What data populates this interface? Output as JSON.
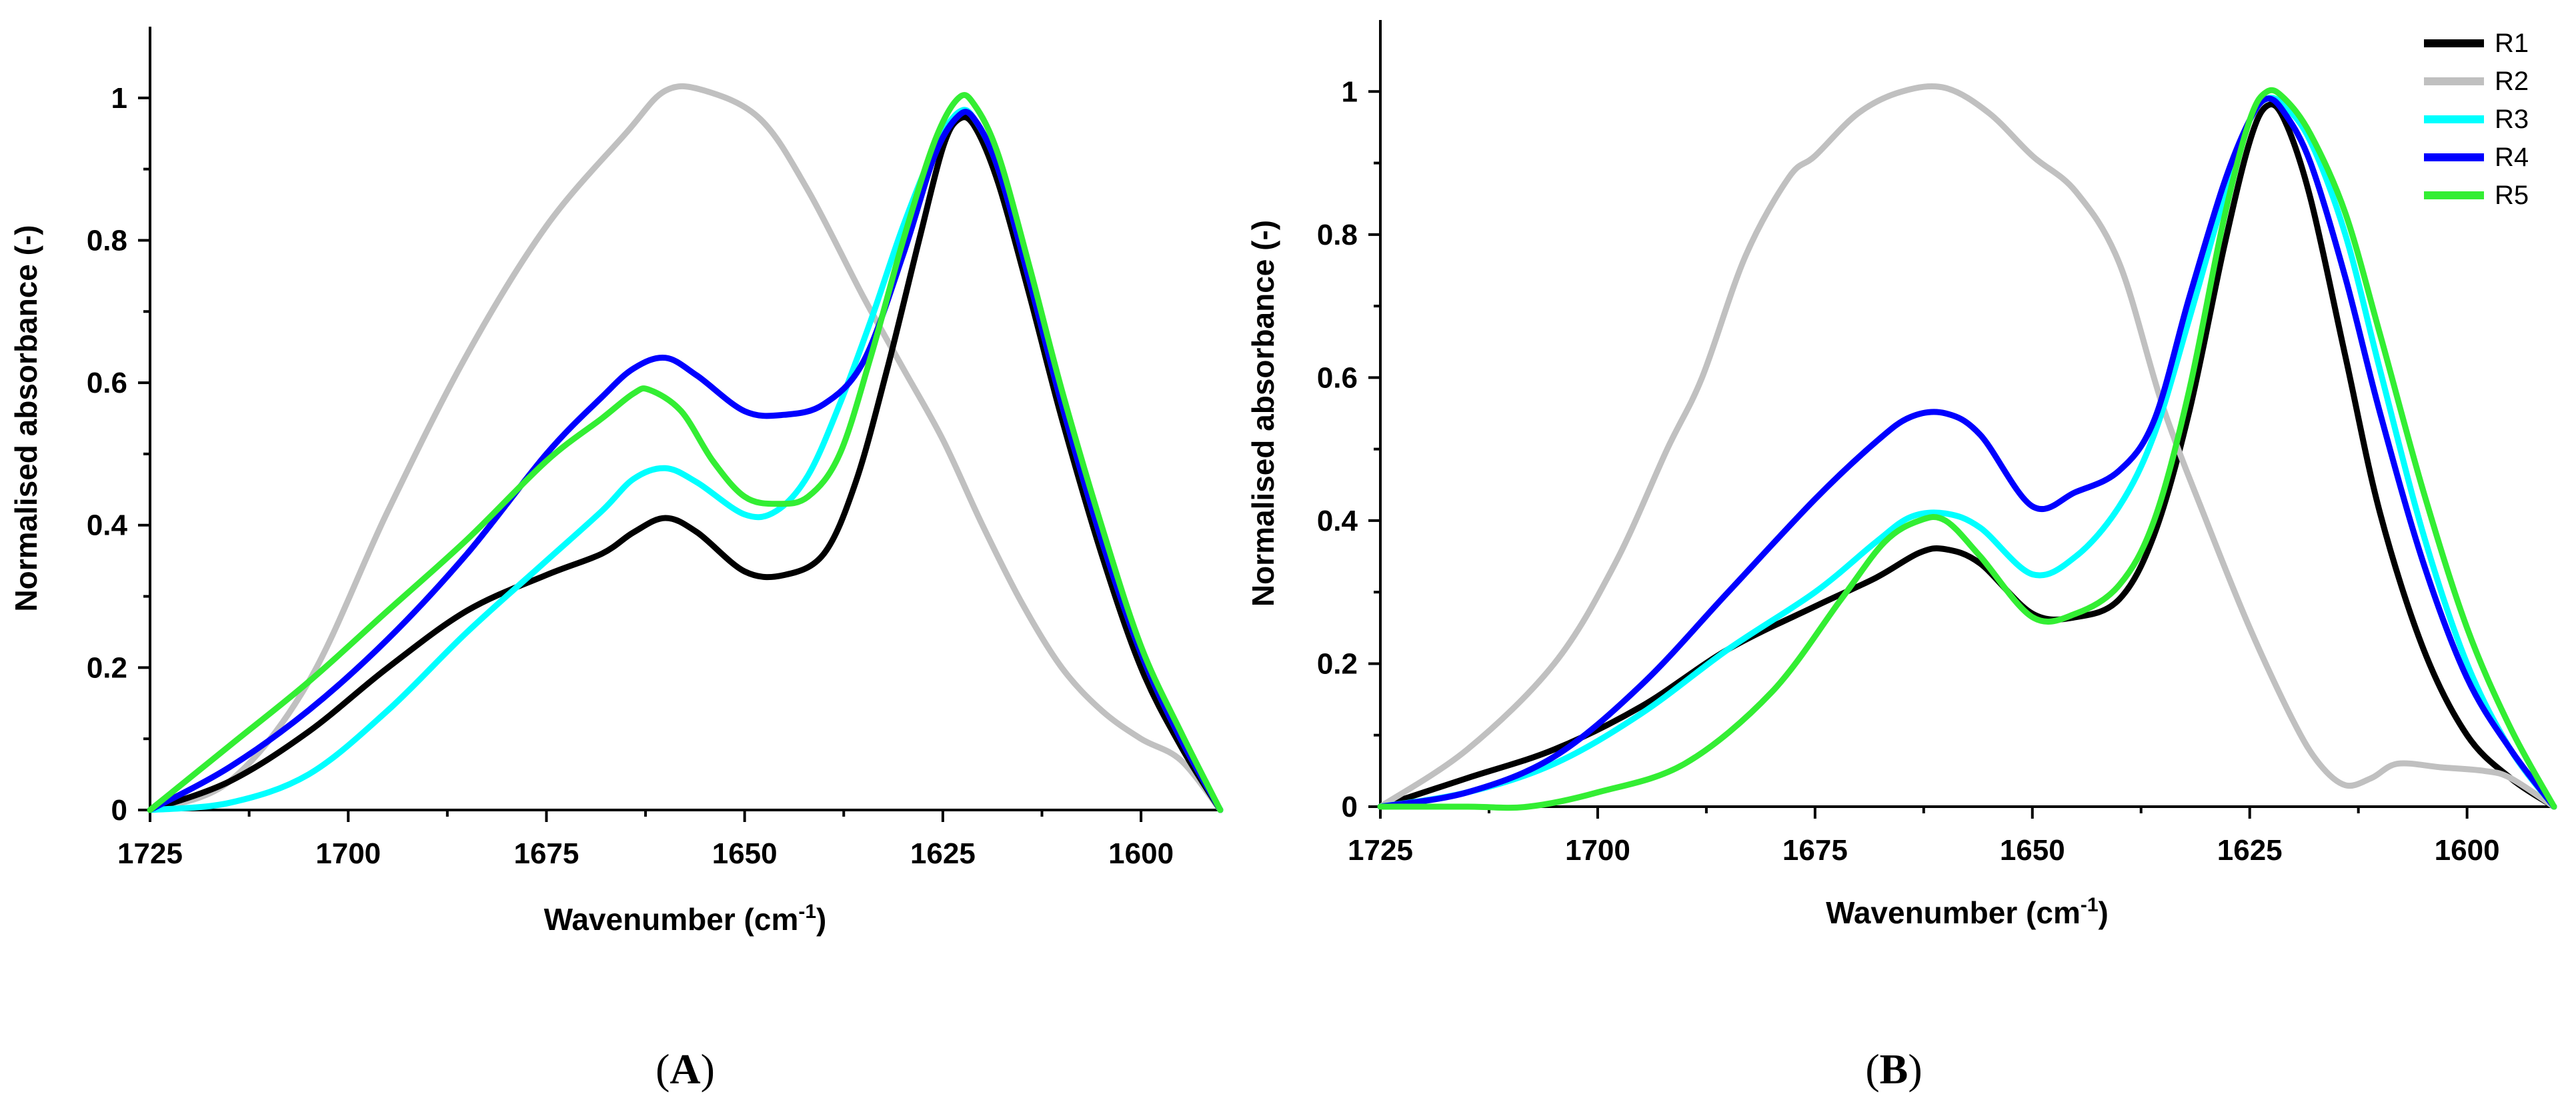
{
  "chart_data": [
    {
      "type": "line",
      "panel_label": "A",
      "xlabel": "Wavenumber (cm",
      "xlabel_sup": "-1",
      "xlabel_end": ")",
      "ylabel": "Normalised absorbance (-)",
      "xlim": [
        1725,
        1590
      ],
      "ylim": [
        0,
        1.1
      ],
      "xticks": [
        1725,
        1700,
        1675,
        1650,
        1625,
        1600
      ],
      "yticks": [
        0,
        0.2,
        0.4,
        0.6,
        0.8,
        1
      ],
      "xtick_labels": [
        "1725",
        "1700",
        "1675",
        "1650",
        "1625",
        "1600"
      ],
      "ytick_labels": [
        "0",
        "0.2",
        "0.4",
        "0.6",
        "0.8",
        "1"
      ],
      "legend": false,
      "series": [
        {
          "name": "R2",
          "color": "#c0c0c0",
          "x": [
            1725,
            1715,
            1705,
            1695,
            1685,
            1675,
            1665,
            1660,
            1655,
            1648,
            1642,
            1635,
            1630,
            1625,
            1620,
            1615,
            1610,
            1605,
            1600,
            1595,
            1590
          ],
          "y": [
            0.0,
            0.04,
            0.18,
            0.42,
            0.64,
            0.82,
            0.95,
            1.01,
            1.01,
            0.97,
            0.87,
            0.72,
            0.62,
            0.52,
            0.4,
            0.29,
            0.2,
            0.14,
            0.1,
            0.07,
            0.0
          ]
        },
        {
          "name": "R1",
          "color": "#000000",
          "x": [
            1725,
            1715,
            1705,
            1695,
            1685,
            1675,
            1668,
            1664,
            1660,
            1656,
            1650,
            1645,
            1640,
            1636,
            1632,
            1628,
            1625,
            1623,
            1621,
            1618,
            1614,
            1610,
            1605,
            1600,
            1595,
            1590
          ],
          "y": [
            0.0,
            0.04,
            0.11,
            0.2,
            0.28,
            0.33,
            0.36,
            0.39,
            0.41,
            0.39,
            0.335,
            0.33,
            0.36,
            0.46,
            0.62,
            0.8,
            0.93,
            0.97,
            0.96,
            0.88,
            0.72,
            0.55,
            0.36,
            0.2,
            0.09,
            0.0
          ]
        },
        {
          "name": "R3",
          "color": "#00ffff",
          "x": [
            1725,
            1715,
            1705,
            1695,
            1685,
            1675,
            1668,
            1664,
            1660,
            1656,
            1650,
            1646,
            1642,
            1638,
            1634,
            1630,
            1626,
            1623,
            1621,
            1618,
            1614,
            1610,
            1605,
            1600,
            1595,
            1590
          ],
          "y": [
            0.0,
            0.01,
            0.05,
            0.14,
            0.25,
            0.35,
            0.42,
            0.465,
            0.48,
            0.46,
            0.415,
            0.42,
            0.47,
            0.57,
            0.69,
            0.82,
            0.93,
            0.98,
            0.97,
            0.9,
            0.74,
            0.57,
            0.38,
            0.22,
            0.1,
            0.0
          ]
        },
        {
          "name": "R4",
          "color": "#0000ff",
          "x": [
            1725,
            1715,
            1705,
            1695,
            1685,
            1675,
            1668,
            1664,
            1660,
            1656,
            1650,
            1645,
            1640,
            1635,
            1630,
            1626,
            1623,
            1621,
            1618,
            1614,
            1610,
            1605,
            1600,
            1595,
            1590
          ],
          "y": [
            0.0,
            0.06,
            0.14,
            0.24,
            0.36,
            0.5,
            0.58,
            0.62,
            0.635,
            0.61,
            0.56,
            0.555,
            0.57,
            0.63,
            0.78,
            0.92,
            0.975,
            0.97,
            0.9,
            0.74,
            0.57,
            0.38,
            0.22,
            0.1,
            0.0
          ]
        },
        {
          "name": "R5",
          "color": "#33ee33",
          "x": [
            1725,
            1715,
            1705,
            1695,
            1685,
            1675,
            1668,
            1664,
            1662,
            1658,
            1654,
            1650,
            1646,
            1642,
            1638,
            1634,
            1630,
            1626,
            1623,
            1621,
            1618,
            1614,
            1610,
            1605,
            1600,
            1595,
            1590
          ],
          "y": [
            0.0,
            0.09,
            0.18,
            0.28,
            0.38,
            0.49,
            0.55,
            0.585,
            0.59,
            0.56,
            0.49,
            0.44,
            0.43,
            0.44,
            0.5,
            0.64,
            0.8,
            0.94,
            1.0,
            0.99,
            0.92,
            0.76,
            0.59,
            0.4,
            0.23,
            0.11,
            0.0
          ]
        }
      ]
    },
    {
      "type": "line",
      "panel_label": "B",
      "xlabel": "Wavenumber (cm",
      "xlabel_sup": "-1",
      "xlabel_end": ")",
      "ylabel": "Normalised absorbance (-)",
      "xlim": [
        1725,
        1590
      ],
      "ylim": [
        0,
        1.1
      ],
      "xticks": [
        1725,
        1700,
        1675,
        1650,
        1625,
        1600
      ],
      "yticks": [
        0,
        0.2,
        0.4,
        0.6,
        0.8,
        1
      ],
      "xtick_labels": [
        "1725",
        "1700",
        "1675",
        "1650",
        "1625",
        "1600"
      ],
      "ytick_labels": [
        "0",
        "0.2",
        "0.4",
        "0.6",
        "0.8",
        "1"
      ],
      "legend": true,
      "legend_position": "top-right",
      "series": [
        {
          "name": "R1",
          "color": "#000000",
          "x": [
            1725,
            1715,
            1705,
            1695,
            1685,
            1675,
            1668,
            1663,
            1660,
            1656,
            1650,
            1645,
            1640,
            1636,
            1632,
            1628,
            1625,
            1623,
            1621,
            1618,
            1614,
            1610,
            1605,
            1600,
            1595,
            1590
          ],
          "y": [
            0.0,
            0.04,
            0.08,
            0.14,
            0.22,
            0.28,
            0.32,
            0.355,
            0.36,
            0.34,
            0.27,
            0.265,
            0.29,
            0.38,
            0.55,
            0.78,
            0.93,
            0.98,
            0.96,
            0.85,
            0.63,
            0.41,
            0.22,
            0.1,
            0.04,
            0.0
          ]
        },
        {
          "name": "R2",
          "color": "#c0c0c0",
          "x": [
            1725,
            1715,
            1705,
            1698,
            1692,
            1688,
            1683,
            1678,
            1675,
            1670,
            1665,
            1660,
            1655,
            1650,
            1645,
            1640,
            1635,
            1630,
            1625,
            1620,
            1617,
            1614,
            1611,
            1608,
            1603,
            1598,
            1595,
            1590
          ],
          "y": [
            0.0,
            0.08,
            0.2,
            0.34,
            0.5,
            0.6,
            0.77,
            0.88,
            0.91,
            0.97,
            1.0,
            1.005,
            0.97,
            0.91,
            0.86,
            0.76,
            0.56,
            0.4,
            0.25,
            0.12,
            0.06,
            0.03,
            0.04,
            0.06,
            0.055,
            0.05,
            0.04,
            0.0
          ]
        },
        {
          "name": "R3",
          "color": "#00ffff",
          "x": [
            1725,
            1715,
            1705,
            1695,
            1685,
            1675,
            1668,
            1664,
            1660,
            1656,
            1650,
            1645,
            1640,
            1636,
            1632,
            1628,
            1625,
            1623,
            1621,
            1618,
            1614,
            1610,
            1605,
            1600,
            1595,
            1590
          ],
          "y": [
            0.0,
            0.02,
            0.06,
            0.13,
            0.22,
            0.3,
            0.37,
            0.405,
            0.41,
            0.39,
            0.325,
            0.35,
            0.42,
            0.52,
            0.68,
            0.85,
            0.96,
            0.99,
            0.98,
            0.93,
            0.8,
            0.61,
            0.38,
            0.2,
            0.08,
            0.0
          ]
        },
        {
          "name": "R4",
          "color": "#0000ff",
          "x": [
            1725,
            1715,
            1705,
            1695,
            1685,
            1675,
            1668,
            1664,
            1660,
            1656,
            1650,
            1645,
            1640,
            1636,
            1632,
            1628,
            1625,
            1623,
            1621,
            1618,
            1614,
            1610,
            1605,
            1600,
            1595,
            1590
          ],
          "y": [
            0.0,
            0.02,
            0.07,
            0.17,
            0.3,
            0.43,
            0.51,
            0.545,
            0.55,
            0.52,
            0.42,
            0.44,
            0.47,
            0.54,
            0.71,
            0.87,
            0.96,
            0.99,
            0.97,
            0.9,
            0.74,
            0.55,
            0.34,
            0.18,
            0.08,
            0.0
          ]
        },
        {
          "name": "R5",
          "color": "#33ee33",
          "x": [
            1725,
            1715,
            1708,
            1700,
            1690,
            1680,
            1672,
            1667,
            1663,
            1660,
            1656,
            1650,
            1645,
            1640,
            1636,
            1632,
            1628,
            1625,
            1623,
            1621,
            1618,
            1614,
            1610,
            1605,
            1600,
            1595,
            1590
          ],
          "y": [
            0.0,
            0.0,
            0.0,
            0.02,
            0.06,
            0.16,
            0.29,
            0.37,
            0.4,
            0.4,
            0.35,
            0.265,
            0.27,
            0.31,
            0.4,
            0.58,
            0.82,
            0.96,
            1.0,
            0.99,
            0.94,
            0.83,
            0.66,
            0.44,
            0.25,
            0.11,
            0.0
          ]
        }
      ]
    }
  ]
}
